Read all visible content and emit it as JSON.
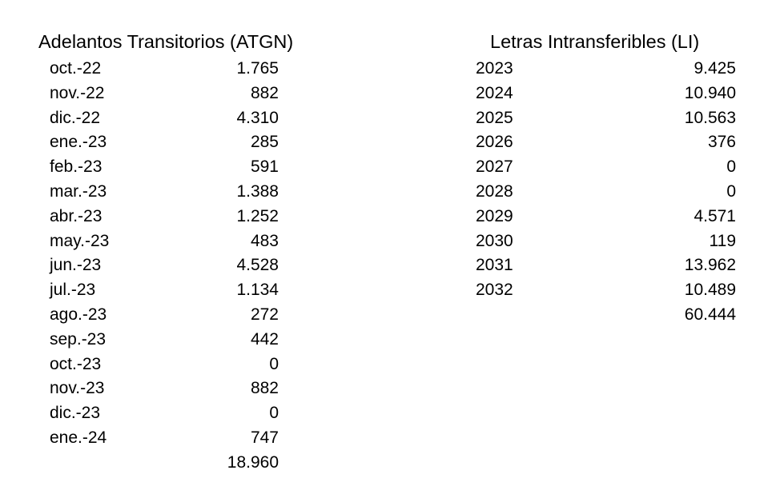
{
  "left_table": {
    "title": "Adelantos Transitorios (ATGN)",
    "rows": [
      {
        "label": "oct.-22",
        "value": "1.765"
      },
      {
        "label": "nov.-22",
        "value": "882"
      },
      {
        "label": "dic.-22",
        "value": "4.310"
      },
      {
        "label": "ene.-23",
        "value": "285"
      },
      {
        "label": "feb.-23",
        "value": "591"
      },
      {
        "label": "mar.-23",
        "value": "1.388"
      },
      {
        "label": "abr.-23",
        "value": "1.252"
      },
      {
        "label": "may.-23",
        "value": "483"
      },
      {
        "label": "jun.-23",
        "value": "4.528"
      },
      {
        "label": "jul.-23",
        "value": "1.134"
      },
      {
        "label": "ago.-23",
        "value": "272"
      },
      {
        "label": "sep.-23",
        "value": "442"
      },
      {
        "label": "oct.-23",
        "value": "0"
      },
      {
        "label": "nov.-23",
        "value": "882"
      },
      {
        "label": "dic.-23",
        "value": "0"
      },
      {
        "label": "ene.-24",
        "value": "747"
      }
    ],
    "total": "18.960"
  },
  "right_table": {
    "title": "Letras Intransferibles (LI)",
    "rows": [
      {
        "label": "2023",
        "value": "9.425"
      },
      {
        "label": "2024",
        "value": "10.940"
      },
      {
        "label": "2025",
        "value": "10.563"
      },
      {
        "label": "2026",
        "value": "376"
      },
      {
        "label": "2027",
        "value": "0"
      },
      {
        "label": "2028",
        "value": "0"
      },
      {
        "label": "2029",
        "value": "4.571"
      },
      {
        "label": "2030",
        "value": "119"
      },
      {
        "label": "2031",
        "value": "13.962"
      },
      {
        "label": "2032",
        "value": "10.489"
      }
    ],
    "total": "60.444"
  }
}
